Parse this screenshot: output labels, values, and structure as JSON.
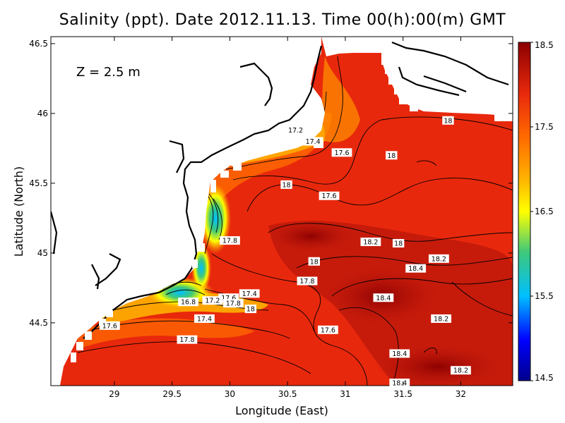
{
  "title": "Salinity (ppt). Date 2012.11.13. Time 00(h):00(m) GMT",
  "depth_label": "Z = 2.5 m",
  "chart_data": {
    "type": "heatmap",
    "title": "Salinity (ppt). Date 2012.11.13. Time 00(h):00(m) GMT",
    "xlabel": "Longitude (East)",
    "ylabel": "Latitude (North)",
    "xlim": [
      28.45,
      32.45
    ],
    "ylim": [
      44.05,
      46.55
    ],
    "x_ticks": [
      29,
      29.5,
      30,
      30.5,
      31,
      31.5,
      32
    ],
    "x_tick_labels": [
      "29",
      "29.5",
      "30",
      "30.5",
      "31",
      "31.5",
      "32"
    ],
    "y_ticks": [
      44.5,
      45,
      45.5,
      46,
      46.5
    ],
    "y_tick_labels": [
      "44.5",
      "45",
      "45.5",
      "46",
      "46.5"
    ],
    "colorbar": {
      "min": 14.5,
      "max": 18.5,
      "ticks": [
        14.5,
        15.5,
        16.5,
        17.5,
        18.5
      ],
      "tick_labels": [
        "14.5",
        "15.5",
        "16.5",
        "17.5",
        "18.5"
      ]
    },
    "contour_labels": [
      {
        "text": "17.2",
        "lon": 30.57,
        "lat": 45.88
      },
      {
        "text": "17.4",
        "lon": 30.72,
        "lat": 45.8
      },
      {
        "text": "17.6",
        "lon": 30.97,
        "lat": 45.72
      },
      {
        "text": "18",
        "lon": 31.89,
        "lat": 45.95
      },
      {
        "text": "18",
        "lon": 31.4,
        "lat": 45.7
      },
      {
        "text": "18",
        "lon": 30.49,
        "lat": 45.49
      },
      {
        "text": "17.6",
        "lon": 30.86,
        "lat": 45.41
      },
      {
        "text": "17.8",
        "lon": 30.0,
        "lat": 45.09
      },
      {
        "text": "18.2",
        "lon": 31.22,
        "lat": 45.08
      },
      {
        "text": "18",
        "lon": 31.46,
        "lat": 45.07
      },
      {
        "text": "18",
        "lon": 30.73,
        "lat": 44.94
      },
      {
        "text": "18.2",
        "lon": 31.81,
        "lat": 44.96
      },
      {
        "text": "18.4",
        "lon": 31.61,
        "lat": 44.89
      },
      {
        "text": "17.8",
        "lon": 30.67,
        "lat": 44.8
      },
      {
        "text": "17.4",
        "lon": 30.17,
        "lat": 44.71
      },
      {
        "text": "17.6",
        "lon": 29.99,
        "lat": 44.68
      },
      {
        "text": "17.2",
        "lon": 29.85,
        "lat": 44.66
      },
      {
        "text": "16.8",
        "lon": 29.64,
        "lat": 44.65
      },
      {
        "text": "17.8",
        "lon": 30.03,
        "lat": 44.64
      },
      {
        "text": "18",
        "lon": 30.18,
        "lat": 44.6
      },
      {
        "text": "18.4",
        "lon": 31.33,
        "lat": 44.68
      },
      {
        "text": "17.4",
        "lon": 29.78,
        "lat": 44.53
      },
      {
        "text": "17.6",
        "lon": 28.96,
        "lat": 44.48
      },
      {
        "text": "18.2",
        "lon": 31.83,
        "lat": 44.53
      },
      {
        "text": "17.6",
        "lon": 30.85,
        "lat": 44.45
      },
      {
        "text": "17.8",
        "lon": 29.63,
        "lat": 44.38
      },
      {
        "text": "18.4",
        "lon": 31.47,
        "lat": 44.28
      },
      {
        "text": "18.2",
        "lon": 32.0,
        "lat": 44.16
      },
      {
        "text": "18.4",
        "lon": 31.47,
        "lat": 44.07
      }
    ]
  },
  "colors": {
    "land": "#ffffff",
    "sea_background": "#e8280c",
    "colormap": [
      "#00008b",
      "#0000ff",
      "#00bfff",
      "#3ec87a",
      "#ffff00",
      "#ffb000",
      "#ff6a00",
      "#e8280c",
      "#b8140a",
      "#8b0000"
    ]
  }
}
